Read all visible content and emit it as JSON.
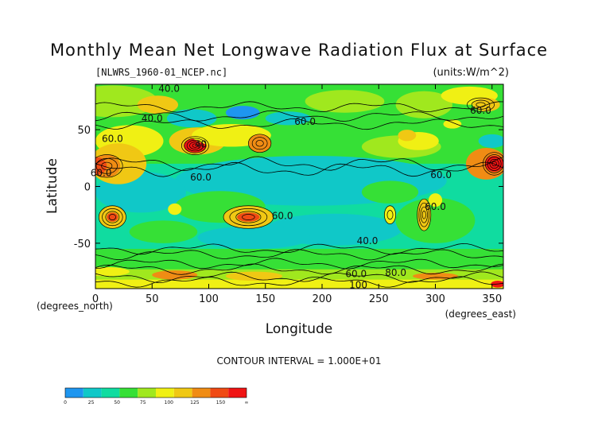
{
  "chart_data": {
    "type": "heatmap",
    "title": "Monthly Mean Net Longwave Radiation Flux at Surface",
    "subtitle": "[NLWRS_1960-01_NCEP.nc]",
    "units": "(units:W/m^2)",
    "xlabel": "Longitude",
    "xlabel_units": "(degrees_east)",
    "ylabel": "Latitude",
    "ylabel_units": "(degrees_north)",
    "xlim": [
      0,
      360
    ],
    "ylim": [
      -90,
      90
    ],
    "x_ticks": [
      0,
      50,
      100,
      150,
      200,
      250,
      300,
      350
    ],
    "y_ticks": [
      50,
      0,
      -50
    ],
    "contour_interval": "CONTOUR INTERVAL = 1.000E+01",
    "colorbar": {
      "labels": [
        "0",
        "25",
        "50",
        "75",
        "100",
        "125",
        "150",
        "∞"
      ],
      "colors": [
        "#1e96f0",
        "#10c8c8",
        "#10dca0",
        "#36e036",
        "#a0e81e",
        "#f0f014",
        "#f0c814",
        "#f08c14",
        "#f04a14",
        "#f01414"
      ]
    },
    "contour_labels": [
      {
        "text": "40.0",
        "lon": 65,
        "lat": 86
      },
      {
        "text": "40.0",
        "lon": 50,
        "lat": 60
      },
      {
        "text": "60.0",
        "lon": 185,
        "lat": 57
      },
      {
        "text": "60.0",
        "lon": 15,
        "lat": 42
      },
      {
        "text": "40",
        "lon": 93,
        "lat": 37
      },
      {
        "text": "60.0",
        "lon": 5,
        "lat": 12
      },
      {
        "text": "60.0",
        "lon": 93,
        "lat": 8
      },
      {
        "text": "60.0",
        "lon": 340,
        "lat": 67
      },
      {
        "text": "60.0",
        "lon": 305,
        "lat": 10
      },
      {
        "text": "60.0",
        "lon": 300,
        "lat": -18
      },
      {
        "text": "60.0",
        "lon": 165,
        "lat": -26
      },
      {
        "text": "40.0",
        "lon": 240,
        "lat": -48
      },
      {
        "text": "60.0",
        "lon": 230,
        "lat": -77
      },
      {
        "text": "80.0",
        "lon": 265,
        "lat": -76
      },
      {
        "text": "100",
        "lon": 232,
        "lat": -87
      }
    ]
  }
}
